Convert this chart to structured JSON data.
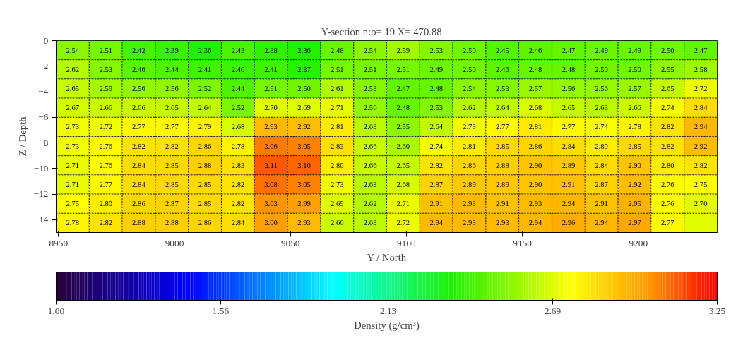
{
  "chart_data": {
    "type": "heatmap",
    "title": "Y-section n:o=  19  X=   470.88",
    "xlabel": "Y / North",
    "ylabel": "Z / Depth",
    "clabel": "Density (g/cm³)",
    "x": [
      8956.1,
      8970.4,
      8984.6,
      8998.9,
      9013.1,
      9027.4,
      9041.6,
      9055.9,
      9070.1,
      9084.4,
      9098.6,
      9112.9,
      9127.1,
      9141.4,
      9155.6,
      9169.9,
      9184.1,
      9198.4,
      9212.6,
      9226.9
    ],
    "y": [
      -0.75,
      -2.25,
      -3.75,
      -5.25,
      -6.75,
      -8.25,
      -9.75,
      -11.25,
      -12.75,
      -14.25
    ],
    "xlim": [
      8949,
      9234
    ],
    "ylim": [
      -15,
      0
    ],
    "xticks": [
      8950,
      9000,
      9050,
      9100,
      9150,
      9200
    ],
    "yticks": [
      0,
      -2,
      -4,
      -6,
      -8,
      -10,
      -12,
      -14
    ],
    "clim": [
      1.0,
      3.25
    ],
    "cticks": [
      {
        "value": 1.0,
        "label": "1.00"
      },
      {
        "value": 1.56,
        "label": "1.56"
      },
      {
        "value": 2.13,
        "label": "2.13"
      },
      {
        "value": 2.69,
        "label": "2.69"
      },
      {
        "value": 3.25,
        "label": "3.25"
      }
    ],
    "grid": false,
    "cells": [
      [
        2.54,
        2.51,
        2.42,
        2.39,
        2.36,
        2.43,
        2.38,
        2.36,
        2.48,
        2.54,
        2.59,
        2.53,
        2.5,
        2.45,
        2.46,
        2.47,
        2.49,
        2.49,
        2.5,
        2.47
      ],
      [
        2.62,
        2.53,
        2.46,
        2.44,
        2.41,
        2.4,
        2.41,
        2.37,
        2.51,
        2.51,
        2.51,
        2.49,
        2.5,
        2.46,
        2.48,
        2.48,
        2.5,
        2.5,
        2.55,
        2.58
      ],
      [
        2.65,
        2.59,
        2.56,
        2.56,
        2.52,
        2.44,
        2.51,
        2.5,
        2.61,
        2.53,
        2.47,
        2.48,
        2.54,
        2.53,
        2.57,
        2.56,
        2.56,
        2.57,
        2.65,
        2.72
      ],
      [
        2.67,
        2.66,
        2.66,
        2.65,
        2.64,
        2.52,
        2.7,
        2.69,
        2.71,
        2.56,
        2.48,
        2.53,
        2.62,
        2.64,
        2.68,
        2.65,
        2.63,
        2.66,
        2.74,
        2.84
      ],
      [
        2.73,
        2.72,
        2.77,
        2.77,
        2.79,
        2.68,
        2.93,
        2.92,
        2.81,
        2.63,
        2.55,
        2.64,
        2.73,
        2.77,
        2.81,
        2.77,
        2.74,
        2.78,
        2.82,
        2.94
      ],
      [
        2.73,
        2.76,
        2.82,
        2.82,
        2.86,
        2.78,
        3.06,
        3.05,
        2.83,
        2.66,
        2.6,
        2.74,
        2.81,
        2.85,
        2.86,
        2.84,
        2.8,
        2.85,
        2.82,
        2.92
      ],
      [
        2.71,
        2.76,
        2.84,
        2.85,
        2.88,
        2.83,
        3.11,
        3.1,
        2.8,
        2.66,
        2.65,
        2.82,
        2.86,
        2.88,
        2.9,
        2.89,
        2.84,
        2.9,
        2.8,
        2.82
      ],
      [
        2.71,
        2.77,
        2.84,
        2.85,
        2.85,
        2.82,
        3.08,
        3.05,
        2.73,
        2.63,
        2.68,
        2.87,
        2.89,
        2.89,
        2.9,
        2.91,
        2.87,
        2.92,
        2.76,
        2.75
      ],
      [
        2.75,
        2.8,
        2.86,
        2.87,
        2.85,
        2.82,
        3.03,
        2.99,
        2.69,
        2.62,
        2.71,
        2.91,
        2.93,
        2.91,
        2.93,
        2.94,
        2.91,
        2.95,
        2.76,
        2.7
      ],
      [
        2.78,
        2.82,
        2.88,
        2.88,
        2.86,
        2.84,
        3.0,
        2.93,
        2.66,
        2.63,
        2.72,
        2.94,
        2.93,
        2.93,
        2.94,
        2.96,
        2.94,
        2.97,
        2.77,
        2.7
      ]
    ],
    "cell_labels": [
      [
        "2.54",
        "2.51",
        "2.42",
        "2.39",
        "2.36",
        "2.43",
        "2.38",
        "2.36",
        "2.48",
        "2.54",
        "2.59",
        "2.53",
        "2.50",
        "2.45",
        "2.46",
        "2.47",
        "2.49",
        "2.49",
        "2.50",
        "2.47"
      ],
      [
        "2.62",
        "2.53",
        "2.46",
        "2.44",
        "2.41",
        "2.40",
        "2.41",
        "2.37",
        "2.51",
        "2.51",
        "2.51",
        "2.49",
        "2.50",
        "2.46",
        "2.48",
        "2.48",
        "2.50",
        "2.50",
        "2.55",
        "2.58"
      ],
      [
        "2.65",
        "2.59",
        "2.56",
        "2.56",
        "2.52",
        "2.44",
        "2.51",
        "2.50",
        "2.61",
        "2.53",
        "2.47",
        "2.48",
        "2.54",
        "2.53",
        "2.57",
        "2.56",
        "2.56",
        "2.57",
        "2.65",
        "2.72"
      ],
      [
        "2.67",
        "2.66",
        "2.66",
        "2.65",
        "2.64",
        "2.52",
        "2.70",
        "2.69",
        "2.71",
        "2.56",
        "2.48",
        "2.53",
        "2.62",
        "2.64",
        "2.68",
        "2.65",
        "2.63",
        "2.66",
        "2.74",
        "2.84"
      ],
      [
        "2.73",
        "2.72",
        "2.77",
        "2.77",
        "2.79",
        "2.68",
        "2.93",
        "2.92",
        "2.81",
        "2.63",
        "2.55",
        "2.64",
        "2.73",
        "2.77",
        "2.81",
        "2.77",
        "2.74",
        "2.78",
        "2.82",
        "2.94"
      ],
      [
        "2.73",
        "2.76",
        "2.82",
        "2.82",
        "2.86",
        "2.78",
        "3.06",
        "3.05",
        "2.83",
        "2.66",
        "2.60",
        "2.74",
        "2.81",
        "2.85",
        "2.86",
        "2.84",
        "2.80",
        "2.85",
        "2.82",
        "2.92"
      ],
      [
        "2.71",
        "2.76",
        "2.84",
        "2.85",
        "2.88",
        "2.83",
        "3.11",
        "3.10",
        "2.80",
        "2.66",
        "2.65",
        "2.82",
        "2.86",
        "2.88",
        "2.90",
        "2.89",
        "2.84",
        "2.90",
        "2.80",
        "2.82"
      ],
      [
        "2.71",
        "2.77",
        "2.84",
        "2.85",
        "2.85",
        "2.82",
        "3.08",
        "3.05",
        "2.73",
        "2.63",
        "2.68",
        "2.87",
        "2.89",
        "2.89",
        "2.90",
        "2.91",
        "2.87",
        "2.92",
        "2.76",
        "2.75"
      ],
      [
        "2.75",
        "2.80",
        "2.86",
        "2.87",
        "2.85",
        "2.82",
        "3.03",
        "2.99",
        "2.69",
        "2.62",
        "2.71",
        "2.91",
        "2.93",
        "2.91",
        "2.93",
        "2.94",
        "2.91",
        "2.95",
        "2.76",
        "2.70"
      ],
      [
        "2.78",
        "2.82",
        "2.88",
        "2.88",
        "2.86",
        "2.84",
        "3.00",
        "2.93",
        "2.66",
        "2.63",
        "2.72",
        "2.94",
        "2.93",
        "2.93",
        "2.94",
        "2.96",
        "2.94",
        "2.97",
        "2.77",
        null
      ]
    ]
  }
}
